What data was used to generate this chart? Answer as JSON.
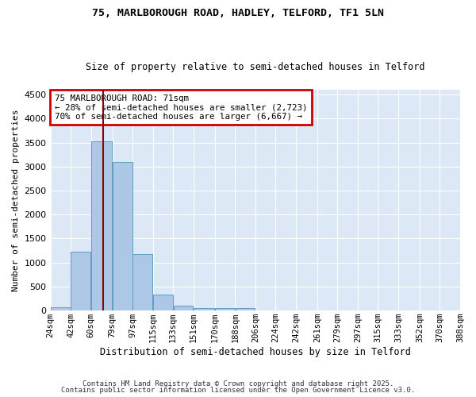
{
  "title1": "75, MARLBOROUGH ROAD, HADLEY, TELFORD, TF1 5LN",
  "title2": "Size of property relative to semi-detached houses in Telford",
  "xlabel": "Distribution of semi-detached houses by size in Telford",
  "ylabel": "Number of semi-detached properties",
  "bar_left_edges": [
    24,
    42,
    60,
    79,
    97,
    115,
    133,
    151,
    170,
    188,
    206,
    224,
    242,
    261,
    279,
    297,
    315,
    333,
    352,
    370
  ],
  "bar_widths": [
    18,
    18,
    19,
    18,
    18,
    18,
    18,
    19,
    18,
    18,
    18,
    18,
    19,
    18,
    18,
    18,
    18,
    19,
    18,
    18
  ],
  "bar_heights": [
    75,
    1225,
    3520,
    3100,
    1170,
    340,
    100,
    60,
    50,
    50,
    0,
    0,
    0,
    0,
    0,
    0,
    0,
    0,
    0,
    0
  ],
  "tick_labels": [
    "24sqm",
    "42sqm",
    "60sqm",
    "79sqm",
    "97sqm",
    "115sqm",
    "133sqm",
    "151sqm",
    "170sqm",
    "188sqm",
    "206sqm",
    "224sqm",
    "242sqm",
    "261sqm",
    "279sqm",
    "297sqm",
    "315sqm",
    "333sqm",
    "352sqm",
    "370sqm",
    "388sqm"
  ],
  "tick_positions": [
    24,
    42,
    60,
    79,
    97,
    115,
    133,
    151,
    170,
    188,
    206,
    224,
    242,
    261,
    279,
    297,
    315,
    333,
    352,
    370,
    388
  ],
  "bar_color": "#adc8e6",
  "bar_edge_color": "#5f9ec0",
  "property_line_x": 71,
  "property_line_color": "#8b0000",
  "annotation_title": "75 MARLBOROUGH ROAD: 71sqm",
  "annotation_line1": "← 28% of semi-detached houses are smaller (2,723)",
  "annotation_line2": "70% of semi-detached houses are larger (6,667) →",
  "annotation_box_color": "#cc0000",
  "ylim": [
    0,
    4600
  ],
  "yticks": [
    0,
    500,
    1000,
    1500,
    2000,
    2500,
    3000,
    3500,
    4000,
    4500
  ],
  "background_color": "#dce8f5",
  "footer1": "Contains HM Land Registry data © Crown copyright and database right 2025.",
  "footer2": "Contains public sector information licensed under the Open Government Licence v3.0."
}
